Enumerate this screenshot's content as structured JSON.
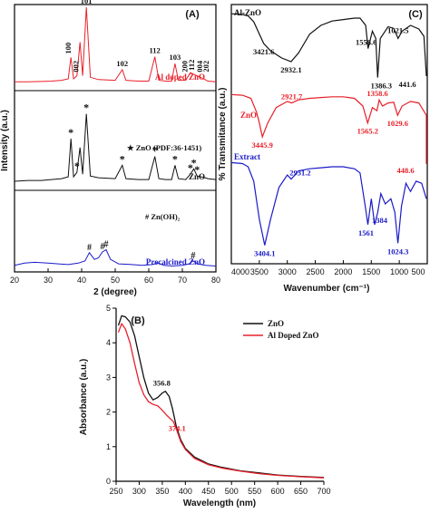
{
  "chart_data": [
    {
      "panel": "(A)",
      "type": "line",
      "xlabel": "2 (degree)",
      "ylabel": "Intensity (a.u.)",
      "xlim": [
        20,
        80
      ],
      "xticks": [
        20,
        30,
        40,
        50,
        60,
        70,
        80
      ],
      "grid": false,
      "series": [
        {
          "name": "Al doped ZnO",
          "color": "#e8202a",
          "offset": 0.66,
          "x": [
            20,
            24,
            28,
            31,
            34,
            36,
            36.8,
            37.6,
            38.6,
            39.5,
            40.3,
            41.4,
            42.6,
            45,
            50,
            52.1,
            53.2,
            57,
            60,
            61.8,
            63,
            65,
            66.8,
            67.8,
            68.8,
            71,
            72.4,
            73.4,
            74.4,
            76.8,
            77.6,
            80
          ],
          "y": [
            0.02,
            0.02,
            0.025,
            0.03,
            0.04,
            0.06,
            0.34,
            0.06,
            0.1,
            0.54,
            0.1,
            1.0,
            0.08,
            0.05,
            0.04,
            0.18,
            0.04,
            0.03,
            0.03,
            0.35,
            0.04,
            0.03,
            0.03,
            0.26,
            0.04,
            0.04,
            0.14,
            0.12,
            0.1,
            0.05,
            0.03,
            0.02
          ]
        },
        {
          "name": "ZnO",
          "color": "#111111",
          "offset": 0.33,
          "x": [
            20,
            24,
            28,
            31,
            34,
            36,
            36.8,
            37.6,
            38.6,
            39.5,
            40.3,
            41.4,
            42.6,
            45,
            50,
            52.1,
            53.2,
            57,
            60,
            61.8,
            63,
            65,
            66.8,
            67.8,
            68.8,
            71,
            72.4,
            73.4,
            74.4,
            76.8,
            77.6,
            80
          ],
          "y": [
            0.02,
            0.03,
            0.03,
            0.04,
            0.05,
            0.07,
            0.5,
            0.07,
            0.12,
            0.4,
            0.1,
            0.78,
            0.08,
            0.06,
            0.05,
            0.2,
            0.05,
            0.04,
            0.04,
            0.3,
            0.05,
            0.04,
            0.04,
            0.2,
            0.05,
            0.04,
            0.1,
            0.16,
            0.08,
            0.06,
            0.05,
            0.04
          ]
        },
        {
          "name": "Precalcined ZnO",
          "color": "#1a1ac8",
          "offset": 0.0,
          "x": [
            20,
            23,
            26,
            30,
            33,
            36,
            39,
            41,
            42.3,
            43.8,
            45,
            46.2,
            47.3,
            48.6,
            51,
            55,
            58,
            61,
            62.8,
            64.5,
            67,
            70,
            72,
            73.2,
            74.6,
            77,
            80
          ],
          "y": [
            0.04,
            0.07,
            0.08,
            0.07,
            0.06,
            0.05,
            0.07,
            0.1,
            0.21,
            0.12,
            0.14,
            0.22,
            0.25,
            0.12,
            0.06,
            0.05,
            0.04,
            0.05,
            0.07,
            0.04,
            0.03,
            0.04,
            0.06,
            0.1,
            0.06,
            0.04,
            0.03
          ]
        }
      ],
      "annotations": {
        "al_peaks": [
          {
            "text": "100",
            "x": 36.8
          },
          {
            "text": "002",
            "x": 39.0
          },
          {
            "text": "101",
            "x": 41.4
          },
          {
            "text": "102",
            "x": 52.1
          },
          {
            "text": "112",
            "x": 61.8
          },
          {
            "text": "103",
            "x": 67.8
          },
          {
            "text": "200",
            "x": 71.5
          },
          {
            "text": "112",
            "x": 73.5
          },
          {
            "text": "004",
            "x": 76.0
          },
          {
            "text": "202",
            "x": 77.8
          }
        ],
        "zno_star_x": [
          36.8,
          38.6,
          41.4,
          52.1,
          61.8,
          67.8,
          72.4,
          73.4,
          74.4
        ],
        "zno_legend": "★ ZnO (PDF:36-1451)",
        "zn_oh_x": [
          42.3,
          46.2,
          47.3,
          73.2
        ],
        "zn_oh_legend": "# Zn(OH)₂",
        "star_glyph": "*",
        "hash_glyph": "#"
      }
    },
    {
      "panel": "(C)",
      "type": "line",
      "xlabel": "Wavenumber (cm⁻¹)",
      "ylabel": "% Transmitance (a.u.)",
      "xlim": [
        4000,
        500
      ],
      "xticks": [
        4000,
        3500,
        3000,
        2500,
        2000,
        1500,
        1000,
        500
      ],
      "grid": false,
      "series": [
        {
          "name": "Al-ZnO",
          "color": "#111111",
          "x": [
            4000,
            3800,
            3700,
            3600,
            3500,
            3421.6,
            3300,
            3100,
            2932.1,
            2800,
            2600,
            2400,
            2200,
            2000,
            1800,
            1700,
            1600,
            1558.6,
            1480,
            1420,
            1386.3,
            1340,
            1200,
            1100,
            1021.5,
            950,
            800,
            650,
            560,
            441.6
          ],
          "y": [
            0.96,
            0.95,
            0.93,
            0.85,
            0.68,
            0.55,
            0.45,
            0.35,
            0.3,
            0.42,
            0.68,
            0.8,
            0.86,
            0.88,
            0.9,
            0.9,
            0.8,
            0.48,
            0.72,
            0.62,
            0.08,
            0.62,
            0.78,
            0.76,
            0.62,
            0.72,
            0.8,
            0.75,
            0.65,
            0.1
          ]
        },
        {
          "name": "ZnO",
          "color": "#e8202a",
          "x": [
            4000,
            3800,
            3650,
            3550,
            3500,
            3445.9,
            3350,
            3200,
            3000,
            2921.7,
            2800,
            2600,
            2400,
            2200,
            2000,
            1800,
            1650,
            1565.2,
            1480,
            1400,
            1358.6,
            1300,
            1200,
            1100,
            1029.6,
            950,
            800,
            650,
            500,
            448.6
          ],
          "y": [
            0.95,
            0.94,
            0.9,
            0.72,
            0.58,
            0.4,
            0.58,
            0.78,
            0.86,
            0.84,
            0.88,
            0.9,
            0.91,
            0.92,
            0.92,
            0.9,
            0.8,
            0.58,
            0.78,
            0.74,
            0.88,
            0.8,
            0.84,
            0.85,
            0.68,
            0.8,
            0.86,
            0.84,
            0.68,
            0.05
          ]
        },
        {
          "name": "Extract",
          "color": "#1a1ac8",
          "x": [
            4000,
            3800,
            3700,
            3600,
            3500,
            3404.1,
            3300,
            3150,
            3000,
            2931.2,
            2800,
            2600,
            2400,
            2200,
            2000,
            1800,
            1700,
            1600,
            1561,
            1500,
            1440,
            1384,
            1330,
            1250,
            1150,
            1080,
            1024.3,
            960,
            880,
            800,
            700,
            600,
            500
          ],
          "y": [
            0.9,
            0.89,
            0.86,
            0.72,
            0.35,
            0.1,
            0.35,
            0.66,
            0.78,
            0.74,
            0.82,
            0.84,
            0.85,
            0.86,
            0.86,
            0.84,
            0.8,
            0.45,
            0.3,
            0.55,
            0.3,
            0.42,
            0.6,
            0.5,
            0.55,
            0.42,
            0.12,
            0.48,
            0.7,
            0.62,
            0.72,
            0.7,
            0.55
          ]
        }
      ],
      "annotations": [
        {
          "series": "Al-ZnO",
          "text": "3421.6",
          "x": 3421.6
        },
        {
          "series": "Al-ZnO",
          "text": "2932.1",
          "x": 2932.1
        },
        {
          "series": "Al-ZnO",
          "text": "1558.6",
          "x": 1558.6
        },
        {
          "series": "Al-ZnO",
          "text": "1386.3",
          "x": 1386.3
        },
        {
          "series": "Al-ZnO",
          "text": "1021.5",
          "x": 1021.5
        },
        {
          "series": "Al-ZnO",
          "text": "441.6",
          "x": 441.6
        },
        {
          "series": "ZnO",
          "text": "3445.9",
          "x": 3445.9
        },
        {
          "series": "ZnO",
          "text": "2921.7",
          "x": 2921.7
        },
        {
          "series": "ZnO",
          "text": "1565.2",
          "x": 1565.2
        },
        {
          "series": "ZnO",
          "text": "1358.6",
          "x": 1358.6
        },
        {
          "series": "ZnO",
          "text": "1029.6",
          "x": 1029.6
        },
        {
          "series": "ZnO",
          "text": "448.6",
          "x": 448.6
        },
        {
          "series": "Extract",
          "text": "3404.1",
          "x": 3404.1
        },
        {
          "series": "Extract",
          "text": "2931.2",
          "x": 2931.2
        },
        {
          "series": "Extract",
          "text": "1561",
          "x": 1561
        },
        {
          "series": "Extract",
          "text": "1384",
          "x": 1384
        },
        {
          "series": "Extract",
          "text": "1024.3",
          "x": 1024.3
        }
      ]
    },
    {
      "panel": "(B)",
      "type": "line",
      "xlabel": "Wavelength (nm)",
      "ylabel": "Absorbance (a.u.)",
      "xlim": [
        250,
        700
      ],
      "ylim": [
        0,
        5
      ],
      "xticks": [
        250,
        300,
        350,
        400,
        450,
        500,
        550,
        600,
        650,
        700
      ],
      "yticks": [
        0,
        1,
        2,
        3,
        4,
        5
      ],
      "grid": false,
      "legend": "top-right",
      "series": [
        {
          "name": "ZnO",
          "color": "#111111",
          "x": [
            255,
            262,
            270,
            280,
            290,
            300,
            310,
            320,
            330,
            340,
            350,
            356.8,
            365,
            372,
            380,
            390,
            400,
            420,
            450,
            480,
            520,
            560,
            600,
            650,
            700
          ],
          "y": [
            4.5,
            4.78,
            4.75,
            4.6,
            4.2,
            3.6,
            3.0,
            2.55,
            2.35,
            2.42,
            2.55,
            2.6,
            2.45,
            2.1,
            1.6,
            1.2,
            0.95,
            0.7,
            0.5,
            0.4,
            0.3,
            0.24,
            0.18,
            0.14,
            0.11
          ]
        },
        {
          "name": "Al Doped ZnO",
          "color": "#e8202a",
          "x": [
            255,
            262,
            270,
            280,
            290,
            300,
            310,
            320,
            330,
            340,
            350,
            360,
            368,
            374.1,
            382,
            390,
            400,
            420,
            450,
            480,
            520,
            560,
            600,
            650,
            700
          ],
          "y": [
            4.3,
            4.55,
            4.4,
            4.0,
            3.4,
            2.85,
            2.5,
            2.3,
            2.22,
            2.18,
            2.05,
            1.9,
            1.8,
            1.72,
            1.45,
            1.15,
            0.92,
            0.66,
            0.48,
            0.38,
            0.29,
            0.22,
            0.17,
            0.13,
            0.1
          ]
        }
      ],
      "annotations": [
        {
          "series": "ZnO",
          "text": "356.8",
          "x": 356.8,
          "y": 2.6
        },
        {
          "series": "Al Doped ZnO",
          "text": "374.1",
          "x": 374.1,
          "y": 1.72
        }
      ]
    }
  ]
}
